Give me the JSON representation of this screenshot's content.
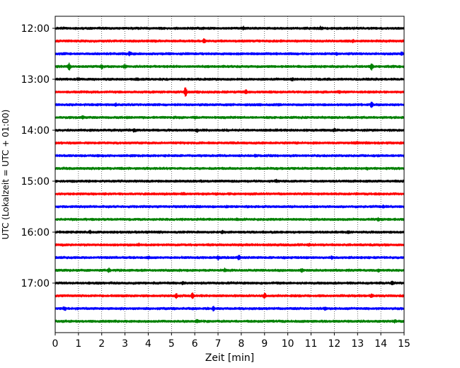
{
  "chart_data": {
    "type": "line",
    "title": "",
    "xlabel": "Zeit  [min]",
    "ylabel": "UTC (Lokalzeit = UTC + 01:00)",
    "xlim": [
      0,
      15
    ],
    "x_ticks": [
      0,
      1,
      2,
      3,
      4,
      5,
      6,
      7,
      8,
      9,
      10,
      11,
      12,
      13,
      14,
      15
    ],
    "x_tick_labels": [
      "0",
      "1",
      "2",
      "3",
      "4",
      "5",
      "6",
      "7",
      "8",
      "9",
      "10",
      "11",
      "12",
      "13",
      "14",
      "15"
    ],
    "y_tick_labels": [
      "12:00",
      "13:00",
      "14:00",
      "15:00",
      "16:00",
      "17:00"
    ],
    "vertical_grid": "dotted",
    "trace_colors": [
      "#000000",
      "#ff0000",
      "#0000ff",
      "#008000"
    ],
    "series": [
      {
        "start": "12:00",
        "events": [
          {
            "t": 8.1,
            "a": 1.5
          },
          {
            "t": 11.4,
            "a": 1.3
          }
        ]
      },
      {
        "start": "12:15",
        "events": [
          {
            "t": 6.4,
            "a": 2.2
          },
          {
            "t": 12.8,
            "a": 1.1
          }
        ]
      },
      {
        "start": "12:30",
        "events": [
          {
            "t": 3.2,
            "a": 2.2
          },
          {
            "t": 12.1,
            "a": 1.4
          },
          {
            "t": 14.9,
            "a": 2.5
          }
        ]
      },
      {
        "start": "12:45",
        "events": [
          {
            "t": 0.6,
            "a": 4.0
          },
          {
            "t": 2.0,
            "a": 2.4
          },
          {
            "t": 3.0,
            "a": 2.0
          },
          {
            "t": 13.6,
            "a": 4.8
          }
        ]
      },
      {
        "start": "13:00",
        "events": [
          {
            "t": 1.0,
            "a": 1.6
          },
          {
            "t": 3.5,
            "a": 1.3
          },
          {
            "t": 10.2,
            "a": 1.2
          }
        ]
      },
      {
        "start": "13:15",
        "events": [
          {
            "t": 5.6,
            "a": 7.5
          },
          {
            "t": 8.2,
            "a": 2.2
          },
          {
            "t": 12.2,
            "a": 1.2
          }
        ]
      },
      {
        "start": "13:30",
        "events": [
          {
            "t": 2.6,
            "a": 1.2
          },
          {
            "t": 13.6,
            "a": 3.5
          }
        ]
      },
      {
        "start": "13:45",
        "events": [
          {
            "t": 1.2,
            "a": 1.5
          },
          {
            "t": 6.0,
            "a": 1.2
          }
        ]
      },
      {
        "start": "14:00",
        "events": [
          {
            "t": 3.4,
            "a": 1.4
          },
          {
            "t": 6.1,
            "a": 1.5
          },
          {
            "t": 12.0,
            "a": 1.5
          }
        ]
      },
      {
        "start": "14:15",
        "events": [
          {
            "t": 13.0,
            "a": 1.1
          }
        ]
      },
      {
        "start": "14:30",
        "events": [
          {
            "t": 8.6,
            "a": 1.0
          }
        ]
      },
      {
        "start": "14:45",
        "events": [
          {
            "t": 2.8,
            "a": 1.1
          },
          {
            "t": 13.4,
            "a": 1.1
          }
        ]
      },
      {
        "start": "15:00",
        "events": [
          {
            "t": 9.5,
            "a": 1.1
          }
        ]
      },
      {
        "start": "15:15",
        "events": [
          {
            "t": 5.5,
            "a": 1.0
          }
        ]
      },
      {
        "start": "15:30",
        "events": [
          {
            "t": 14.1,
            "a": 1.3
          }
        ]
      },
      {
        "start": "15:45",
        "events": [
          {
            "t": 7.8,
            "a": 1.5
          },
          {
            "t": 13.9,
            "a": 1.4
          }
        ]
      },
      {
        "start": "16:00",
        "events": [
          {
            "t": 1.5,
            "a": 1.3
          },
          {
            "t": 7.2,
            "a": 1.4
          },
          {
            "t": 12.6,
            "a": 1.6
          }
        ]
      },
      {
        "start": "16:15",
        "events": [
          {
            "t": 3.6,
            "a": 1.2
          },
          {
            "t": 10.9,
            "a": 1.3
          }
        ]
      },
      {
        "start": "16:30",
        "events": [
          {
            "t": 4.0,
            "a": 1.7
          },
          {
            "t": 7.0,
            "a": 2.0
          },
          {
            "t": 7.9,
            "a": 2.5
          },
          {
            "t": 11.9,
            "a": 1.6
          }
        ]
      },
      {
        "start": "16:45",
        "events": [
          {
            "t": 2.3,
            "a": 2.0
          },
          {
            "t": 7.3,
            "a": 1.5
          },
          {
            "t": 10.6,
            "a": 2.3
          },
          {
            "t": 13.9,
            "a": 1.6
          }
        ]
      },
      {
        "start": "17:00",
        "events": [
          {
            "t": 5.5,
            "a": 1.4
          },
          {
            "t": 14.5,
            "a": 1.8
          }
        ]
      },
      {
        "start": "17:15",
        "events": [
          {
            "t": 5.2,
            "a": 2.2
          },
          {
            "t": 5.9,
            "a": 3.6
          },
          {
            "t": 9.0,
            "a": 3.0
          },
          {
            "t": 13.6,
            "a": 1.8
          }
        ]
      },
      {
        "start": "17:30",
        "events": [
          {
            "t": 0.4,
            "a": 2.5
          },
          {
            "t": 6.8,
            "a": 2.2
          },
          {
            "t": 11.6,
            "a": 2.0
          }
        ]
      },
      {
        "start": "17:45",
        "events": [
          {
            "t": 6.1,
            "a": 1.8
          },
          {
            "t": 14.6,
            "a": 1.5
          }
        ]
      }
    ]
  }
}
